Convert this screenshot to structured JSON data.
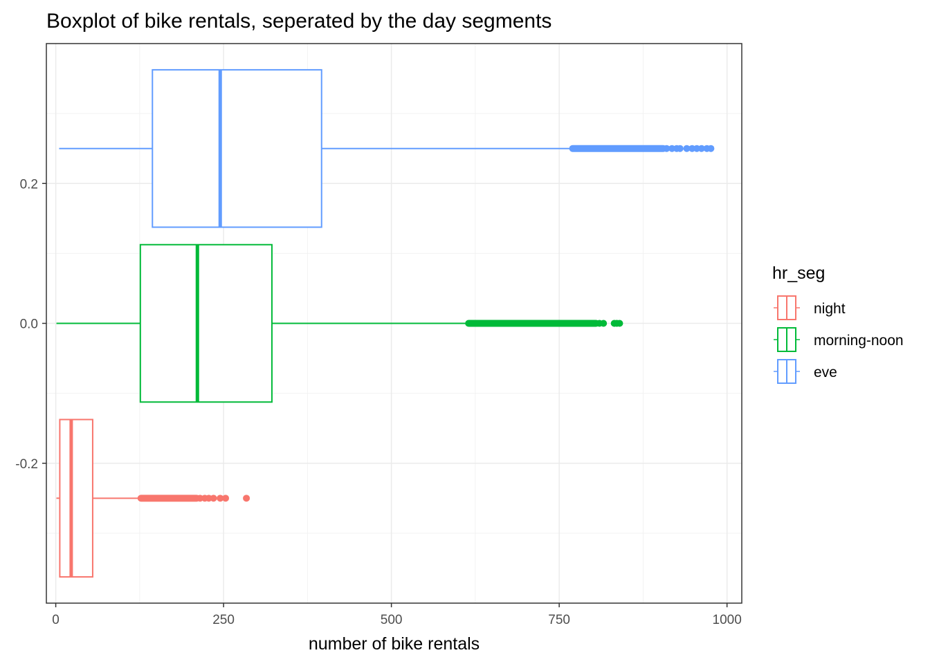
{
  "chart_data": {
    "type": "boxplot",
    "title": "Boxplot of bike rentals, seperated by the day segments",
    "xlabel": "number of bike rentals",
    "ylabel": "",
    "xlim": [
      -14,
      1022
    ],
    "ylim": [
      -0.4,
      0.4
    ],
    "x_ticks": [
      0,
      250,
      500,
      750,
      1000
    ],
    "x_tick_labels": [
      "0",
      "250",
      "500",
      "750",
      "1000"
    ],
    "y_ticks": [
      -0.2,
      0.0,
      0.2
    ],
    "y_tick_labels": [
      "-0.2",
      "0.0",
      "0.2"
    ],
    "grid": true,
    "legend": {
      "title": "hr_seg",
      "position": "right",
      "entries": [
        "night",
        "morning-noon",
        "eve"
      ]
    },
    "series": [
      {
        "name": "night",
        "color": "#F8766D",
        "center": -0.25,
        "box_range": [
          -0.3625,
          -0.1375
        ],
        "min": 1,
        "q1": 6,
        "median": 23,
        "q3": 55,
        "whisker_high": 127,
        "outliers_dense": [
          127,
          210
        ],
        "outliers": [
          215,
          222,
          228,
          235,
          245,
          253,
          284
        ]
      },
      {
        "name": "morning-noon",
        "color": "#00BA38",
        "center": 0.0,
        "box_range": [
          -0.1125,
          0.1125
        ],
        "min": 1,
        "q1": 126,
        "median": 211,
        "q3": 322,
        "whisker_high": 615,
        "outliers_dense": [
          615,
          805
        ],
        "outliers": [
          810,
          816,
          832,
          836,
          840
        ]
      },
      {
        "name": "eve",
        "color": "#619CFF",
        "center": 0.25,
        "box_range": [
          0.1375,
          0.3625
        ],
        "min": 5,
        "q1": 144,
        "median": 245,
        "q3": 396,
        "whisker_high": 770,
        "outliers_dense": [
          770,
          905
        ],
        "outliers": [
          910,
          918,
          925,
          930,
          940,
          948,
          955,
          962,
          970,
          976
        ]
      }
    ]
  }
}
